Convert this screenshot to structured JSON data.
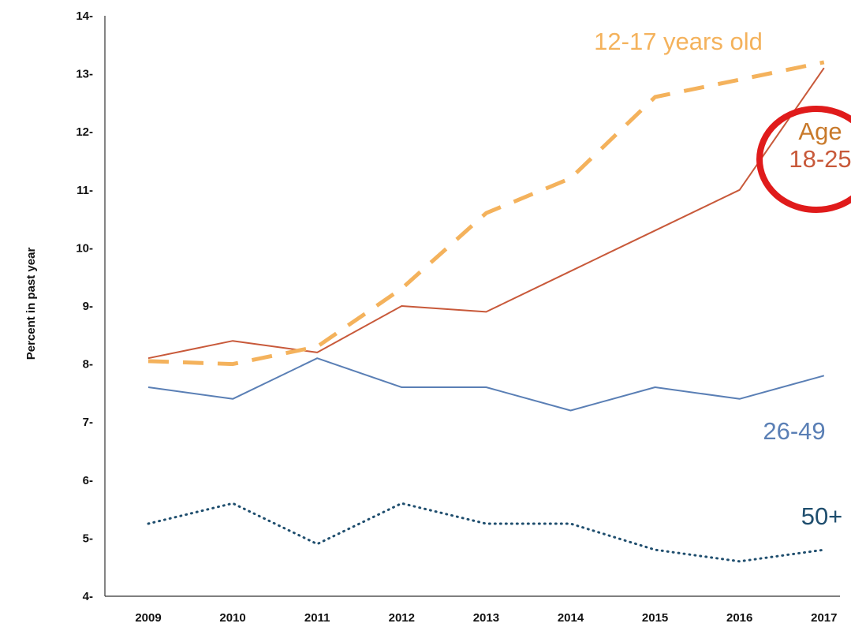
{
  "chart_data": {
    "type": "line",
    "title": "",
    "xlabel": "",
    "ylabel": "Percent in past year",
    "x": [
      "2009",
      "2010",
      "2011",
      "2012",
      "2013",
      "2014",
      "2015",
      "2016",
      "2017"
    ],
    "ylim": [
      4,
      14
    ],
    "yticks": [
      "4-",
      "5-",
      "6-",
      "7-",
      "8-",
      "9-",
      "10-",
      "11-",
      "12-",
      "13-",
      "14-"
    ],
    "grid": false,
    "series": [
      {
        "name": "12-17 years old",
        "color": "#F4B25C",
        "style": "dashed",
        "values": [
          8.05,
          8.0,
          8.3,
          9.3,
          10.6,
          11.2,
          12.6,
          12.9,
          13.2
        ]
      },
      {
        "name": "Age 18-25",
        "color": "#C8593A",
        "style": "solid",
        "values": [
          8.1,
          8.4,
          8.2,
          9.0,
          8.9,
          9.6,
          10.3,
          11.0,
          13.1
        ]
      },
      {
        "name": "26-49",
        "color": "#5A7FB5",
        "style": "solid",
        "values": [
          7.6,
          7.4,
          8.1,
          7.6,
          7.6,
          7.2,
          7.6,
          7.4,
          7.8
        ]
      },
      {
        "name": "50+",
        "color": "#1F4E6E",
        "style": "dotted",
        "values": [
          5.25,
          5.6,
          4.9,
          5.6,
          5.25,
          5.25,
          4.8,
          4.6,
          4.8
        ]
      }
    ],
    "labels": {
      "teen": "12-17 years old",
      "age_word": "Age",
      "age_range": "18-25",
      "adult": "26-49",
      "senior": "50+"
    },
    "annotation": {
      "shape": "circle",
      "color": "#E01B1B",
      "target": "Age 18-25"
    }
  }
}
